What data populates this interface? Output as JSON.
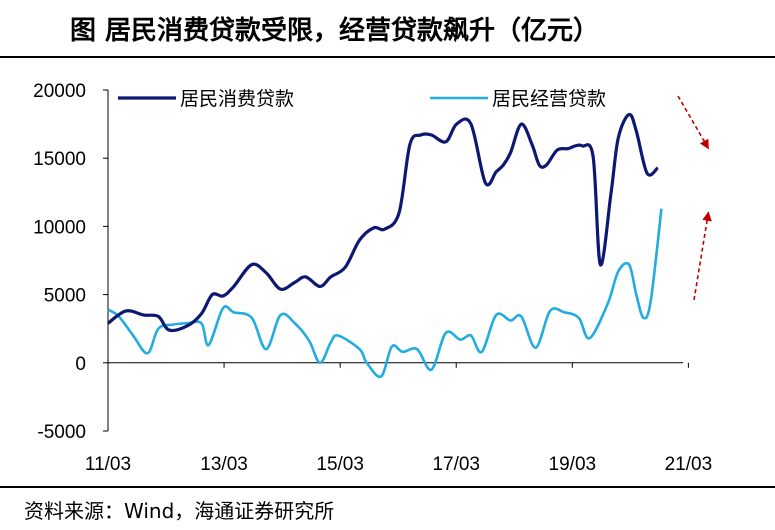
{
  "header": {
    "title": "图  居民消费贷款受限，经营贷款飙升（亿元）"
  },
  "footer": {
    "source": "资料来源：Wind，海通证券研究所"
  },
  "chart_data": {
    "type": "line",
    "title": "图  居民消费贷款受限，经营贷款飙升（亿元）",
    "xlabel": "",
    "ylabel": "",
    "ylim": [
      -5000,
      20000
    ],
    "yticks": [
      "-5000",
      "0",
      "5000",
      "10000",
      "15000",
      "20000"
    ],
    "xticks": [
      "11/03",
      "13/03",
      "15/03",
      "17/03",
      "19/03",
      "21/03"
    ],
    "legend_position": "top",
    "series": [
      {
        "name": "居民消费贷款",
        "color": "#0d1873",
        "points": [
          [
            0.0,
            2900
          ],
          [
            0.25,
            3800
          ],
          [
            0.5,
            3500
          ],
          [
            0.7,
            3400
          ],
          [
            0.85,
            2400
          ],
          [
            1.1,
            2700
          ],
          [
            1.3,
            3600
          ],
          [
            1.45,
            5000
          ],
          [
            1.6,
            4900
          ],
          [
            1.75,
            5600
          ],
          [
            2.0,
            7200
          ],
          [
            2.2,
            6600
          ],
          [
            2.4,
            5400
          ],
          [
            2.6,
            5900
          ],
          [
            2.75,
            6300
          ],
          [
            2.95,
            5600
          ],
          [
            3.1,
            6300
          ],
          [
            3.3,
            7000
          ],
          [
            3.5,
            9000
          ],
          [
            3.7,
            9900
          ],
          [
            3.85,
            9800
          ],
          [
            4.05,
            11000
          ],
          [
            4.2,
            16000
          ],
          [
            4.35,
            16700
          ],
          [
            4.5,
            16700
          ],
          [
            4.7,
            16200
          ],
          [
            4.85,
            17500
          ],
          [
            5.05,
            17500
          ],
          [
            5.25,
            13200
          ],
          [
            5.4,
            14000
          ],
          [
            5.5,
            14500
          ],
          [
            5.6,
            15400
          ],
          [
            5.75,
            17500
          ],
          [
            5.9,
            16000
          ],
          [
            6.0,
            14500
          ],
          [
            6.1,
            14500
          ],
          [
            6.25,
            15600
          ],
          [
            6.4,
            15700
          ],
          [
            6.5,
            15900
          ],
          [
            6.6,
            15900
          ],
          [
            6.75,
            15100
          ],
          [
            6.85,
            7200
          ],
          [
            7.0,
            12500
          ],
          [
            7.1,
            16500
          ],
          [
            7.25,
            18200
          ],
          [
            7.35,
            17000
          ],
          [
            7.5,
            13900
          ],
          [
            7.65,
            14300
          ]
        ]
      },
      {
        "name": "居民经营贷款",
        "color": "#22ace0",
        "points": [
          [
            0.0,
            3900
          ],
          [
            0.15,
            3400
          ],
          [
            0.35,
            2000
          ],
          [
            0.55,
            700
          ],
          [
            0.7,
            2500
          ],
          [
            0.9,
            2800
          ],
          [
            1.1,
            2900
          ],
          [
            1.3,
            2900
          ],
          [
            1.4,
            1300
          ],
          [
            1.6,
            4000
          ],
          [
            1.75,
            3700
          ],
          [
            2.0,
            3300
          ],
          [
            2.2,
            1000
          ],
          [
            2.4,
            3500
          ],
          [
            2.6,
            2900
          ],
          [
            2.8,
            1600
          ],
          [
            2.95,
            0
          ],
          [
            3.1,
            1500
          ],
          [
            3.2,
            2000
          ],
          [
            3.5,
            1000
          ],
          [
            3.6,
            0
          ],
          [
            3.8,
            -1000
          ],
          [
            3.95,
            1200
          ],
          [
            4.1,
            800
          ],
          [
            4.3,
            1000
          ],
          [
            4.5,
            -500
          ],
          [
            4.7,
            2200
          ],
          [
            4.9,
            1700
          ],
          [
            5.05,
            2000
          ],
          [
            5.2,
            800
          ],
          [
            5.4,
            3500
          ],
          [
            5.6,
            3100
          ],
          [
            5.75,
            3400
          ],
          [
            5.95,
            1100
          ],
          [
            6.15,
            3800
          ],
          [
            6.35,
            3700
          ],
          [
            6.55,
            3300
          ],
          [
            6.7,
            1800
          ],
          [
            6.95,
            4300
          ],
          [
            7.1,
            6700
          ],
          [
            7.25,
            7200
          ],
          [
            7.35,
            5000
          ],
          [
            7.45,
            3300
          ],
          [
            7.55,
            4500
          ],
          [
            7.7,
            11300
          ]
        ]
      }
    ]
  },
  "annotations": {
    "arrow_color": "#c00000"
  }
}
